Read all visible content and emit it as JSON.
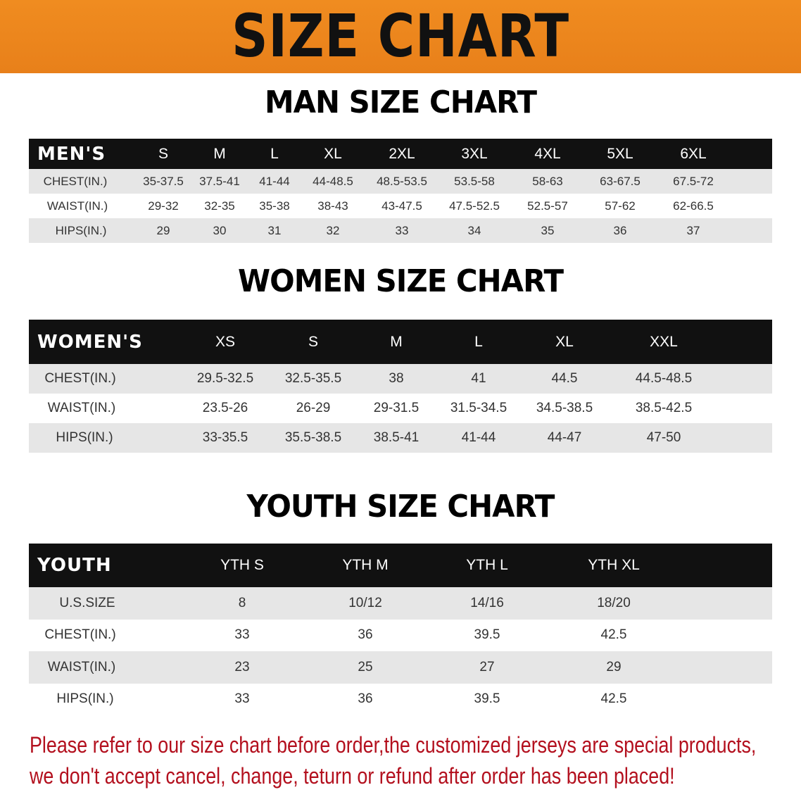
{
  "banner": {
    "title": "SIZE CHART",
    "color": "#ee8620"
  },
  "men": {
    "title": "MAN SIZE CHART",
    "header": [
      "MEN'S",
      "S",
      "M",
      "L",
      "XL",
      "2XL",
      "3XL",
      "4XL",
      "5XL",
      "6XL"
    ],
    "rows": [
      [
        "CHEST(IN.)",
        "35-37.5",
        "37.5-41",
        "41-44",
        "44-48.5",
        "48.5-53.5",
        "53.5-58",
        "58-63",
        "63-67.5",
        "67.5-72"
      ],
      [
        "WAIST(IN.)",
        "29-32",
        "32-35",
        "35-38",
        "38-43",
        "43-47.5",
        "47.5-52.5",
        "52.5-57",
        "57-62",
        "62-66.5"
      ],
      [
        "HIPS(IN.)",
        "29",
        "30",
        "31",
        "32",
        "33",
        "34",
        "35",
        "36",
        "37"
      ]
    ]
  },
  "women": {
    "title": "WOMEN SIZE CHART",
    "header": [
      "WOMEN'S",
      "XS",
      "S",
      "M",
      "L",
      "XL",
      "XXL"
    ],
    "rows": [
      [
        "CHEST(IN.)",
        "29.5-32.5",
        "32.5-35.5",
        "38",
        "41",
        "44.5",
        "44.5-48.5"
      ],
      [
        "WAIST(IN.)",
        "23.5-26",
        "26-29",
        "29-31.5",
        "31.5-34.5",
        "34.5-38.5",
        "38.5-42.5"
      ],
      [
        "HIPS(IN.)",
        "33-35.5",
        "35.5-38.5",
        "38.5-41",
        "41-44",
        "44-47",
        "47-50"
      ]
    ]
  },
  "youth": {
    "title": "YOUTH SIZE CHART",
    "header": [
      "YOUTH",
      "YTH S",
      "YTH M",
      "YTH L",
      "YTH XL"
    ],
    "rows": [
      [
        "U.S.SIZE",
        "8",
        "10/12",
        "14/16",
        "18/20"
      ],
      [
        "CHEST(IN.)",
        "33",
        "36",
        "39.5",
        "42.5"
      ],
      [
        "WAIST(IN.)",
        "23",
        "25",
        "27",
        "29"
      ],
      [
        "HIPS(IN.)",
        "33",
        "36",
        "39.5",
        "42.5"
      ]
    ]
  },
  "notice": {
    "line1": "Please refer to our size chart before order,the customized jerseys are special products,",
    "line2": "we don't accept cancel, change, teturn or refund after order has been placed!",
    "color": "#b3101e"
  }
}
